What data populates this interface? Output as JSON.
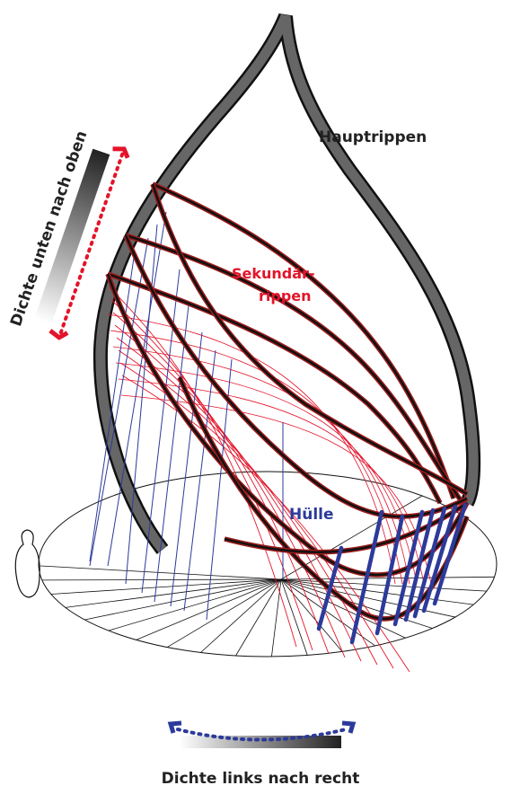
{
  "labels": {
    "main_ribs": "Hauptrippen",
    "secondary_ribs_1": "Sekundär-",
    "secondary_ribs_2": "rippen",
    "hull": "Hülle",
    "density_vertical": "Dichte unten nach oben",
    "density_horizontal": "Dichte links nach recht"
  }
}
